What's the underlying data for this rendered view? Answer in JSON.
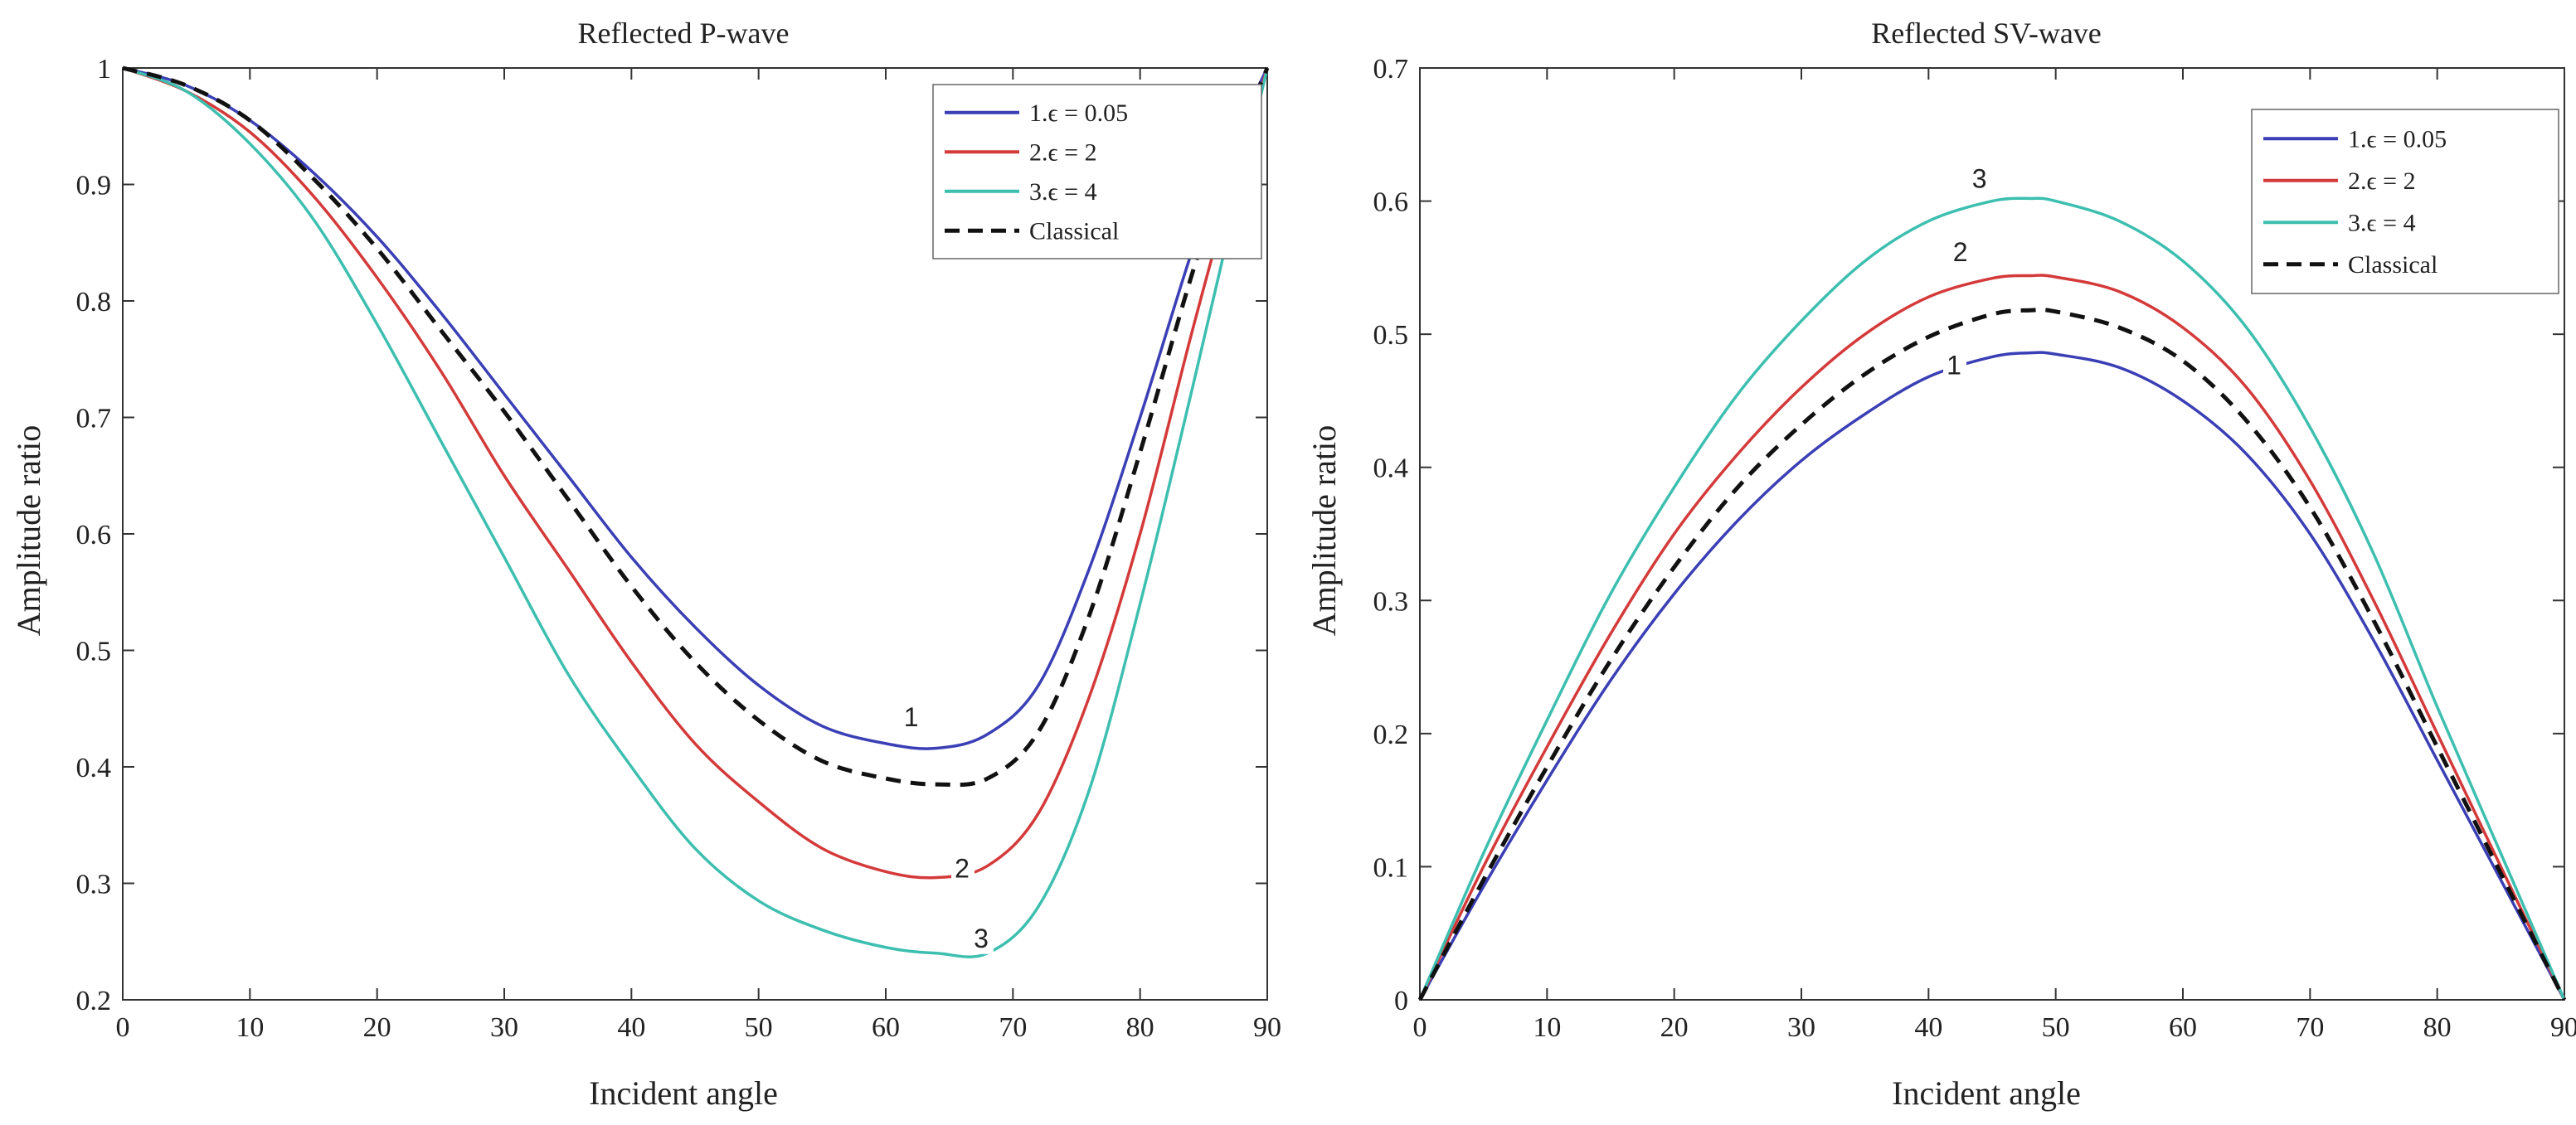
{
  "chart_data": [
    {
      "type": "line",
      "title": "Reflected P-wave",
      "xlabel": "Incident angle",
      "ylabel": "Amplitude ratio",
      "xlim": [
        0,
        90
      ],
      "ylim": [
        0.2,
        1.0
      ],
      "xticks": [
        0,
        10,
        20,
        30,
        40,
        50,
        60,
        70,
        80,
        90
      ],
      "yticks": [
        0.2,
        0.3,
        0.4,
        0.5,
        0.6,
        0.7,
        0.8,
        0.9,
        1.0
      ],
      "ytick_labels": [
        "0.2",
        "0.3",
        "0.4",
        "0.5",
        "0.6",
        "0.7",
        "0.8",
        "0.9",
        "1"
      ],
      "legend_position": "top-right",
      "x": [
        0,
        5,
        10,
        15,
        20,
        25,
        30,
        35,
        40,
        45,
        50,
        55,
        60,
        64,
        68,
        72,
        76,
        80,
        84,
        87,
        90
      ],
      "series": [
        {
          "name": "1.ϵ = 0.05",
          "color": "#3b3fb5",
          "dash": false,
          "label": "1",
          "label_at": [
            62,
            0.435
          ],
          "values": [
            1.0,
            0.985,
            0.955,
            0.91,
            0.855,
            0.79,
            0.72,
            0.65,
            0.58,
            0.52,
            0.47,
            0.435,
            0.42,
            0.416,
            0.428,
            0.47,
            0.57,
            0.7,
            0.84,
            0.93,
            1.0
          ]
        },
        {
          "name": "2.ϵ = 2",
          "color": "#d43a3a",
          "dash": false,
          "label": "2",
          "label_at": [
            66,
            0.305
          ],
          "values": [
            1.0,
            0.98,
            0.945,
            0.89,
            0.82,
            0.74,
            0.65,
            0.57,
            0.49,
            0.42,
            0.37,
            0.33,
            0.31,
            0.305,
            0.315,
            0.36,
            0.46,
            0.6,
            0.77,
            0.89,
            1.0
          ]
        },
        {
          "name": "3.ϵ = 4",
          "color": "#3dbfb0",
          "dash": false,
          "label": "3",
          "label_at": [
            67.5,
            0.245
          ],
          "values": [
            1.0,
            0.98,
            0.935,
            0.87,
            0.78,
            0.68,
            0.58,
            0.48,
            0.4,
            0.33,
            0.285,
            0.26,
            0.245,
            0.24,
            0.24,
            0.28,
            0.38,
            0.54,
            0.72,
            0.86,
            1.0
          ]
        },
        {
          "name": "Classical",
          "color": "#111111",
          "dash": true,
          "values": [
            1.0,
            0.985,
            0.955,
            0.905,
            0.845,
            0.775,
            0.705,
            0.63,
            0.555,
            0.49,
            0.44,
            0.405,
            0.39,
            0.385,
            0.39,
            0.43,
            0.53,
            0.67,
            0.82,
            0.92,
            1.0
          ]
        }
      ]
    },
    {
      "type": "line",
      "title": "Reflected SV-wave",
      "xlabel": "Incident angle",
      "ylabel": "Amplitude ratio",
      "xlim": [
        0,
        90
      ],
      "ylim": [
        0,
        0.7
      ],
      "xticks": [
        0,
        10,
        20,
        30,
        40,
        50,
        60,
        70,
        80,
        90
      ],
      "yticks": [
        0,
        0.1,
        0.2,
        0.3,
        0.4,
        0.5,
        0.6,
        0.7
      ],
      "ytick_labels": [
        "0",
        "0.1",
        "0.2",
        "0.3",
        "0.4",
        "0.5",
        "0.6",
        "0.7"
      ],
      "legend_position": "top-right",
      "x": [
        0,
        5,
        10,
        15,
        20,
        25,
        30,
        35,
        40,
        45,
        48,
        50,
        55,
        60,
        65,
        70,
        75,
        80,
        85,
        90
      ],
      "series": [
        {
          "name": "1.ϵ = 0.05",
          "color": "#3b3fb5",
          "dash": false,
          "label": "1",
          "label_at": [
            42,
            0.47
          ],
          "values": [
            0,
            0.085,
            0.165,
            0.24,
            0.305,
            0.36,
            0.405,
            0.44,
            0.468,
            0.483,
            0.486,
            0.485,
            0.475,
            0.45,
            0.41,
            0.35,
            0.27,
            0.18,
            0.09,
            0
          ]
        },
        {
          "name": "2.ϵ = 2",
          "color": "#d43a3a",
          "dash": false,
          "label": "2",
          "label_at": [
            42.5,
            0.555
          ],
          "values": [
            0,
            0.1,
            0.19,
            0.275,
            0.35,
            0.41,
            0.46,
            0.5,
            0.528,
            0.542,
            0.544,
            0.543,
            0.532,
            0.505,
            0.46,
            0.39,
            0.3,
            0.2,
            0.1,
            0
          ]
        },
        {
          "name": "3.ϵ = 4",
          "color": "#3dbfb0",
          "dash": false,
          "label": "3",
          "label_at": [
            44,
            0.61
          ],
          "values": [
            0,
            0.11,
            0.21,
            0.305,
            0.385,
            0.455,
            0.51,
            0.555,
            0.585,
            0.6,
            0.602,
            0.6,
            0.585,
            0.555,
            0.505,
            0.43,
            0.335,
            0.22,
            0.11,
            0
          ]
        },
        {
          "name": "Classical",
          "color": "#111111",
          "dash": true,
          "values": [
            0,
            0.09,
            0.175,
            0.255,
            0.325,
            0.385,
            0.432,
            0.47,
            0.498,
            0.515,
            0.518,
            0.517,
            0.505,
            0.48,
            0.435,
            0.37,
            0.285,
            0.19,
            0.095,
            0
          ]
        }
      ]
    }
  ]
}
